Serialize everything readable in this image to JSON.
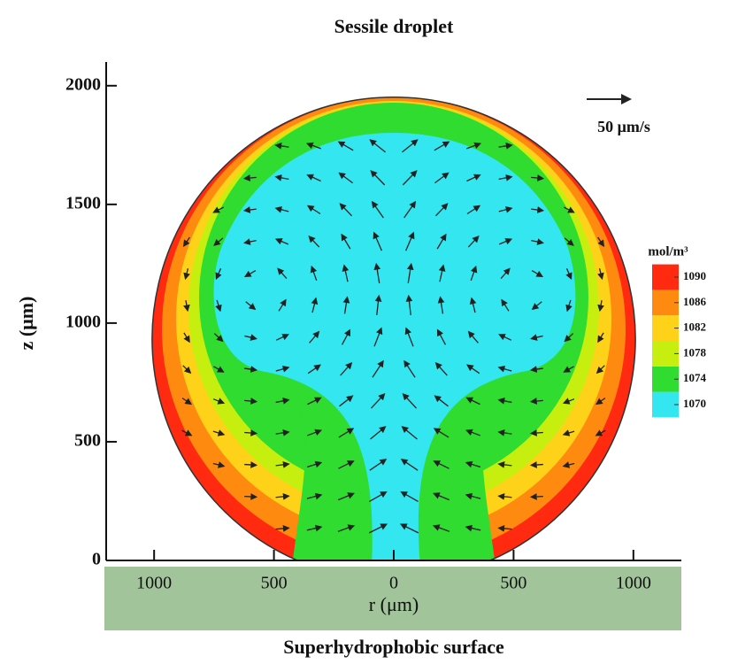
{
  "chart_data": {
    "type": "contour",
    "title": "Sessile droplet",
    "xlabel": "r (μm)",
    "ylabel": "z (μm)",
    "surface_label": "Superhydrophobic surface",
    "scale_label": "50 μm/s",
    "xlim": [
      -1200,
      1200
    ],
    "ylim": [
      0,
      2100
    ],
    "xticks": [
      {
        "value": -1000,
        "label": "1000"
      },
      {
        "value": -500,
        "label": "500"
      },
      0,
      500,
      1000
    ],
    "yticks": [
      0,
      500,
      1000,
      1500,
      2000
    ],
    "colorbar": {
      "title": "mol/m³",
      "levels": [
        1070,
        1074,
        1078,
        1082,
        1086,
        1090
      ],
      "colors": [
        "#33e6f0",
        "#2fdc2f",
        "#c6ef10",
        "#ffd21a",
        "#ff8a10",
        "#ff2a10"
      ]
    }
  }
}
